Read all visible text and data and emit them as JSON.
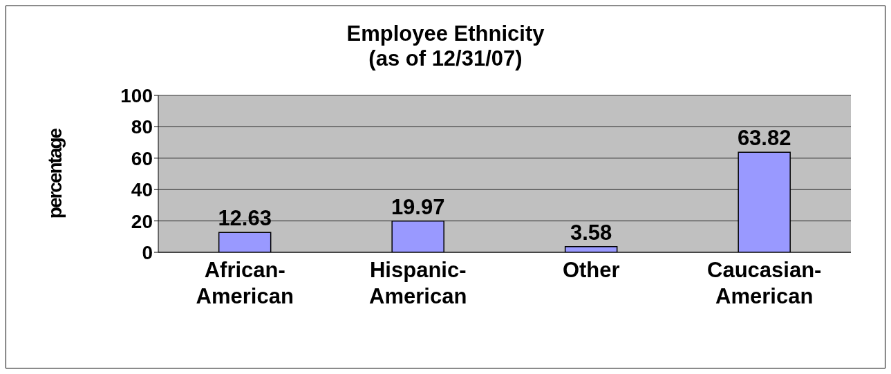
{
  "chart_data": {
    "type": "bar",
    "title": "Employee Ethnicity",
    "subtitle": "(as of 12/31/07)",
    "ylabel": "percentage",
    "categories": [
      "African-American",
      "Hispanic-American",
      "Other",
      "Caucasian-American"
    ],
    "values": [
      12.63,
      19.97,
      3.58,
      63.82
    ],
    "color": "#9999ff",
    "ylim": [
      0,
      100
    ],
    "yticks": [
      0,
      20,
      40,
      60,
      80,
      100
    ],
    "grid": "y",
    "data_labels": true
  }
}
